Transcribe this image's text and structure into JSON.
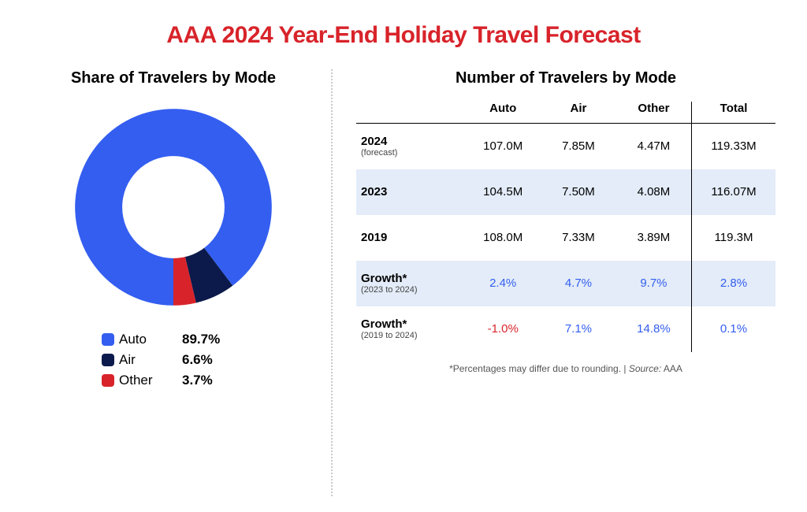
{
  "title": {
    "text": "AAA 2024 Year-End Holiday Travel Forecast",
    "color": "#d8232a",
    "fontsize": 30
  },
  "divider_color": "#c9c9c9",
  "donut": {
    "title": "Share of Travelers by Mode",
    "type": "donut",
    "inner_radius_pct": 52,
    "rotation_deg": 180,
    "background_color": "#ffffff",
    "slices": [
      {
        "label": "Auto",
        "value": 89.7,
        "color": "#345ef0"
      },
      {
        "label": "Air",
        "value": 6.6,
        "color": "#0b1a4a"
      },
      {
        "label": "Other",
        "value": 3.7,
        "color": "#d8232a"
      }
    ],
    "legend_fontsize": 17
  },
  "table": {
    "title": "Number of Travelers by Mode",
    "type": "table",
    "header_fontsize": 15,
    "cell_fontsize": 15,
    "alt_row_bg": "#e3ecf8",
    "text_color": "#000000",
    "value_color_blue": "#345ef0",
    "value_color_red": "#d8232a",
    "columns": [
      {
        "key": "label",
        "header": ""
      },
      {
        "key": "auto",
        "header": "Auto"
      },
      {
        "key": "air",
        "header": "Air"
      },
      {
        "key": "other",
        "header": "Other"
      },
      {
        "key": "total",
        "header": "Total",
        "total_separator": true
      }
    ],
    "rows": [
      {
        "label": "2024",
        "sublabel": "(forecast)",
        "auto": "107.0M",
        "air": "7.85M",
        "other": "4.47M",
        "total": "119.33M",
        "shaded": false,
        "color": "#000000"
      },
      {
        "label": "2023",
        "sublabel": "",
        "auto": "104.5M",
        "air": "7.50M",
        "other": "4.08M",
        "total": "116.07M",
        "shaded": true,
        "color": "#000000"
      },
      {
        "label": "2019",
        "sublabel": "",
        "auto": "108.0M",
        "air": "7.33M",
        "other": "3.89M",
        "total": "119.3M",
        "shaded": false,
        "color": "#000000"
      },
      {
        "label": "Growth*",
        "sublabel": "(2023 to 2024)",
        "auto": "2.4%",
        "air": "4.7%",
        "other": "9.7%",
        "total": "2.8%",
        "shaded": true,
        "color": "#345ef0"
      },
      {
        "label": "Growth*",
        "sublabel": "(2019 to 2024)",
        "auto": "-1.0%",
        "air": "7.1%",
        "other": "14.8%",
        "total": "0.1%",
        "shaded": false,
        "color": "#345ef0",
        "auto_color": "#d8232a"
      }
    ],
    "footnote": "*Percentages may differ due to rounding. | ",
    "footnote_source_label": "Source:",
    "footnote_source": " AAA"
  }
}
